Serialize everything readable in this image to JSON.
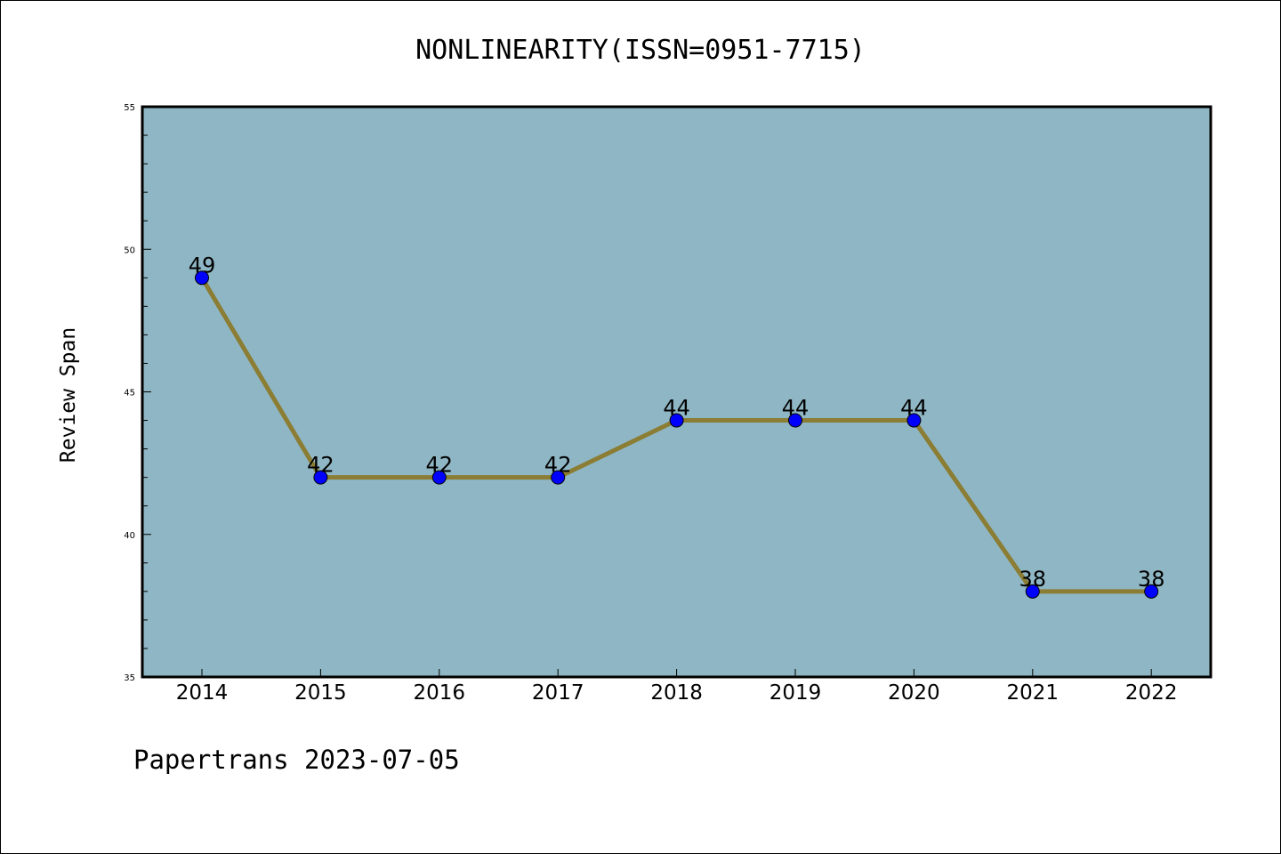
{
  "chart_data": {
    "type": "line",
    "title": "NONLINEARITY(ISSN=0951-7715)",
    "xlabel": "",
    "ylabel": "Review Span",
    "categories": [
      "2014",
      "2015",
      "2016",
      "2017",
      "2018",
      "2019",
      "2020",
      "2021",
      "2022"
    ],
    "series": [
      {
        "values": [
          49,
          42,
          42,
          42,
          44,
          44,
          44,
          38,
          38
        ]
      }
    ],
    "ylim": [
      35,
      55
    ],
    "yticks": [
      35,
      40,
      45,
      50,
      55
    ],
    "grid": false,
    "colors": {
      "plot_background": "#8fb6c4",
      "line": "#8b7d33",
      "marker": "#0000ff"
    }
  },
  "footer": {
    "text": "Papertrans 2023-07-05"
  }
}
